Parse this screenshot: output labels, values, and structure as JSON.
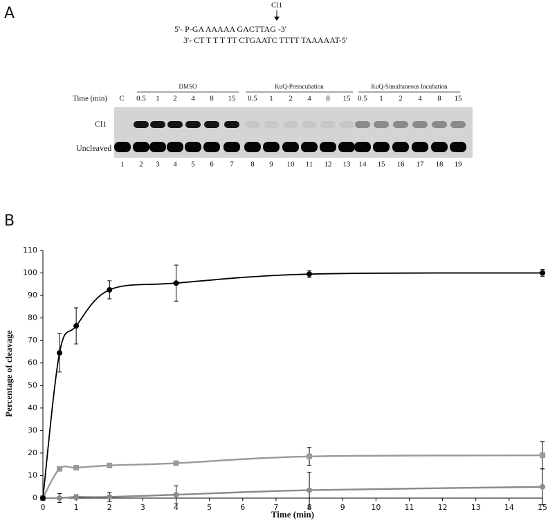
{
  "panel_a": {
    "label": "A",
    "site_label": "Cl1",
    "sequence_top": "5'-  P-GA AAAAA GACTTAG -3'",
    "sequence_bottom": "3'- CT T T T TT CTGAATC TTTT TAAAAAT-5'",
    "time_header": "Time (min)",
    "control_label": "C",
    "groups": [
      {
        "label": "DMSO",
        "times": [
          0.5,
          1,
          2,
          4,
          8,
          15
        ]
      },
      {
        "label": "KuQ-Preincubation",
        "times": [
          0.5,
          1,
          2,
          4,
          8,
          15
        ]
      },
      {
        "label": "KuQ-Simultaneous Incubation",
        "times": [
          0.5,
          1,
          2,
          4,
          8,
          15
        ]
      }
    ],
    "row_labels": [
      "Cl1",
      "Uncleaved"
    ],
    "lane_numbers": [
      1,
      2,
      3,
      4,
      5,
      6,
      7,
      8,
      9,
      10,
      11,
      12,
      13,
      14,
      15,
      16,
      17,
      18,
      19
    ]
  },
  "chart_data": {
    "type": "line",
    "panel_label": "B",
    "x_label": "Time (min)",
    "y_label": "Percentage of cleavage",
    "x": [
      0,
      0.5,
      1,
      2,
      4,
      8,
      15
    ],
    "series": [
      {
        "color": "#000000",
        "marker": "circle",
        "values": [
          0,
          64.5,
          76.5,
          92.5,
          95.5,
          99.5,
          100
        ],
        "errors": [
          0,
          8.5,
          8,
          4,
          8,
          1.5,
          1.5
        ]
      },
      {
        "color": "#9a9a9a",
        "marker": "square",
        "values": [
          0,
          13,
          13.5,
          14.5,
          15.5,
          18.5,
          19
        ],
        "errors": [
          0,
          0.5,
          0.5,
          0.5,
          0.5,
          4,
          6
        ]
      },
      {
        "color": "#8a8a8a",
        "marker": "circle",
        "values": [
          0,
          0,
          0.5,
          0.5,
          1.5,
          3.5,
          5
        ],
        "errors": [
          0,
          2,
          1,
          2,
          4,
          8,
          8
        ]
      }
    ],
    "xlim": [
      0,
      15
    ],
    "xticks": [
      0,
      1,
      2,
      3,
      4,
      5,
      6,
      7,
      8,
      9,
      10,
      11,
      12,
      13,
      14,
      15
    ],
    "ylim": [
      0,
      110
    ],
    "yticks": [
      0,
      10,
      20,
      30,
      40,
      50,
      60,
      70,
      80,
      90,
      100,
      110
    ]
  }
}
